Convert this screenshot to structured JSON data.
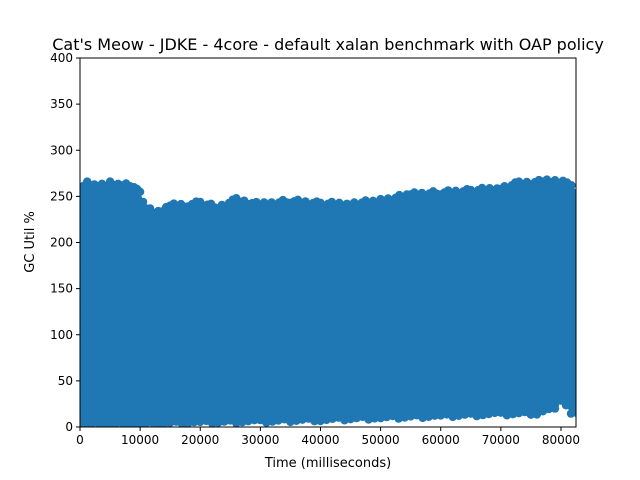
{
  "chart_data": {
    "type": "scatter",
    "title": "Cat's Meow - JDKE - 4core -  default xalan benchmark with OAP policy",
    "xlabel": "Time (milliseconds)",
    "ylabel": "GC Util %",
    "xlim": [
      0,
      82500
    ],
    "ylim": [
      0,
      400
    ],
    "x_ticks": [
      0,
      10000,
      20000,
      30000,
      40000,
      50000,
      60000,
      70000,
      80000
    ],
    "y_ticks": [
      0,
      50,
      100,
      150,
      200,
      250,
      300,
      350,
      400
    ],
    "grid": false,
    "marker_color": "#1f77b4",
    "band": {
      "upper_envelope": [
        {
          "x": 0,
          "y": 258
        },
        {
          "x": 1200,
          "y": 265
        },
        {
          "x": 3000,
          "y": 262
        },
        {
          "x": 5000,
          "y": 264
        },
        {
          "x": 7000,
          "y": 262
        },
        {
          "x": 9000,
          "y": 262
        },
        {
          "x": 10000,
          "y": 254
        },
        {
          "x": 11000,
          "y": 238
        },
        {
          "x": 13000,
          "y": 232
        },
        {
          "x": 15000,
          "y": 240
        },
        {
          "x": 18000,
          "y": 241
        },
        {
          "x": 20000,
          "y": 243
        },
        {
          "x": 23000,
          "y": 238
        },
        {
          "x": 26000,
          "y": 246
        },
        {
          "x": 30000,
          "y": 241
        },
        {
          "x": 35000,
          "y": 245
        },
        {
          "x": 40000,
          "y": 242
        },
        {
          "x": 45000,
          "y": 242
        },
        {
          "x": 50000,
          "y": 245
        },
        {
          "x": 55000,
          "y": 252
        },
        {
          "x": 60000,
          "y": 254
        },
        {
          "x": 65000,
          "y": 256
        },
        {
          "x": 70000,
          "y": 259
        },
        {
          "x": 73000,
          "y": 264
        },
        {
          "x": 77000,
          "y": 266
        },
        {
          "x": 81000,
          "y": 267
        },
        {
          "x": 82500,
          "y": 257
        }
      ],
      "lower_envelope": [
        {
          "x": 0,
          "y": 3
        },
        {
          "x": 10000,
          "y": 3
        },
        {
          "x": 20000,
          "y": 5
        },
        {
          "x": 30000,
          "y": 6
        },
        {
          "x": 40000,
          "y": 8
        },
        {
          "x": 50000,
          "y": 10
        },
        {
          "x": 60000,
          "y": 12
        },
        {
          "x": 70000,
          "y": 14
        },
        {
          "x": 76000,
          "y": 15
        },
        {
          "x": 78000,
          "y": 20
        },
        {
          "x": 80000,
          "y": 28
        },
        {
          "x": 82500,
          "y": 10
        }
      ]
    },
    "outliers": [
      {
        "x": 14500,
        "y": 25
      },
      {
        "x": 55500,
        "y": 17
      },
      {
        "x": 62000,
        "y": 16
      },
      {
        "x": 70000,
        "y": 18
      },
      {
        "x": 74500,
        "y": 22
      },
      {
        "x": 77500,
        "y": 45
      },
      {
        "x": 78000,
        "y": 65
      },
      {
        "x": 78500,
        "y": 28
      },
      {
        "x": 79000,
        "y": 20
      },
      {
        "x": 79500,
        "y": 100
      },
      {
        "x": 80000,
        "y": 125
      },
      {
        "x": 80500,
        "y": 140
      },
      {
        "x": 81000,
        "y": 50
      },
      {
        "x": 81500,
        "y": 165
      },
      {
        "x": 82000,
        "y": 175
      },
      {
        "x": 82300,
        "y": 168
      }
    ]
  }
}
